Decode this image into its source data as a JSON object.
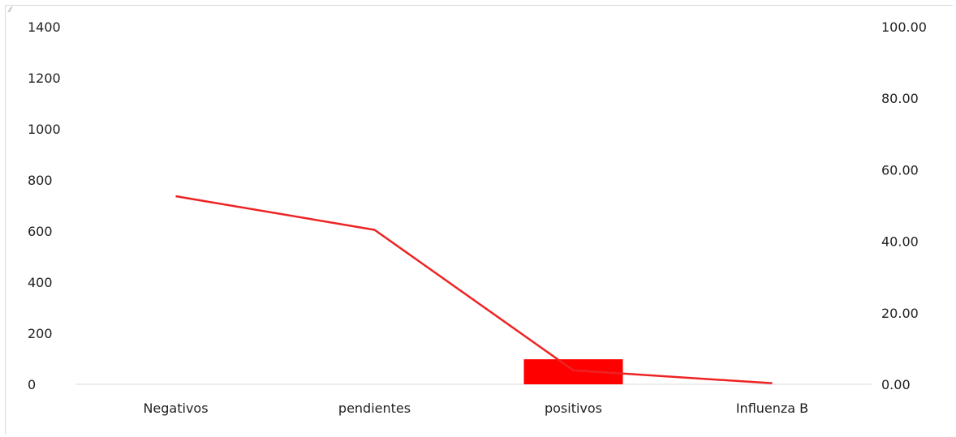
{
  "chart_data": {
    "type": "bar",
    "categories": [
      "Negativos",
      "pendientes",
      "positivos",
      "Influenza B"
    ],
    "series": [
      {
        "type": "bar",
        "axis": "left",
        "color": "#ff0000",
        "values": [
          0,
          0,
          98,
          0
        ]
      },
      {
        "type": "line",
        "axis": "right",
        "color": "#ee2222",
        "values": [
          52.6,
          43.2,
          3.9,
          0.3
        ]
      }
    ],
    "y_left": {
      "ticks": [
        "0",
        "200",
        "400",
        "600",
        "800",
        "1000",
        "1200",
        "1400"
      ],
      "ylim": [
        0,
        1400
      ]
    },
    "y_right": {
      "ticks": [
        "0.00",
        "20.00",
        "40.00",
        "60.00",
        "80.00",
        "100.00"
      ],
      "ylim": [
        0,
        100
      ]
    },
    "grid": false,
    "legend": "none"
  }
}
